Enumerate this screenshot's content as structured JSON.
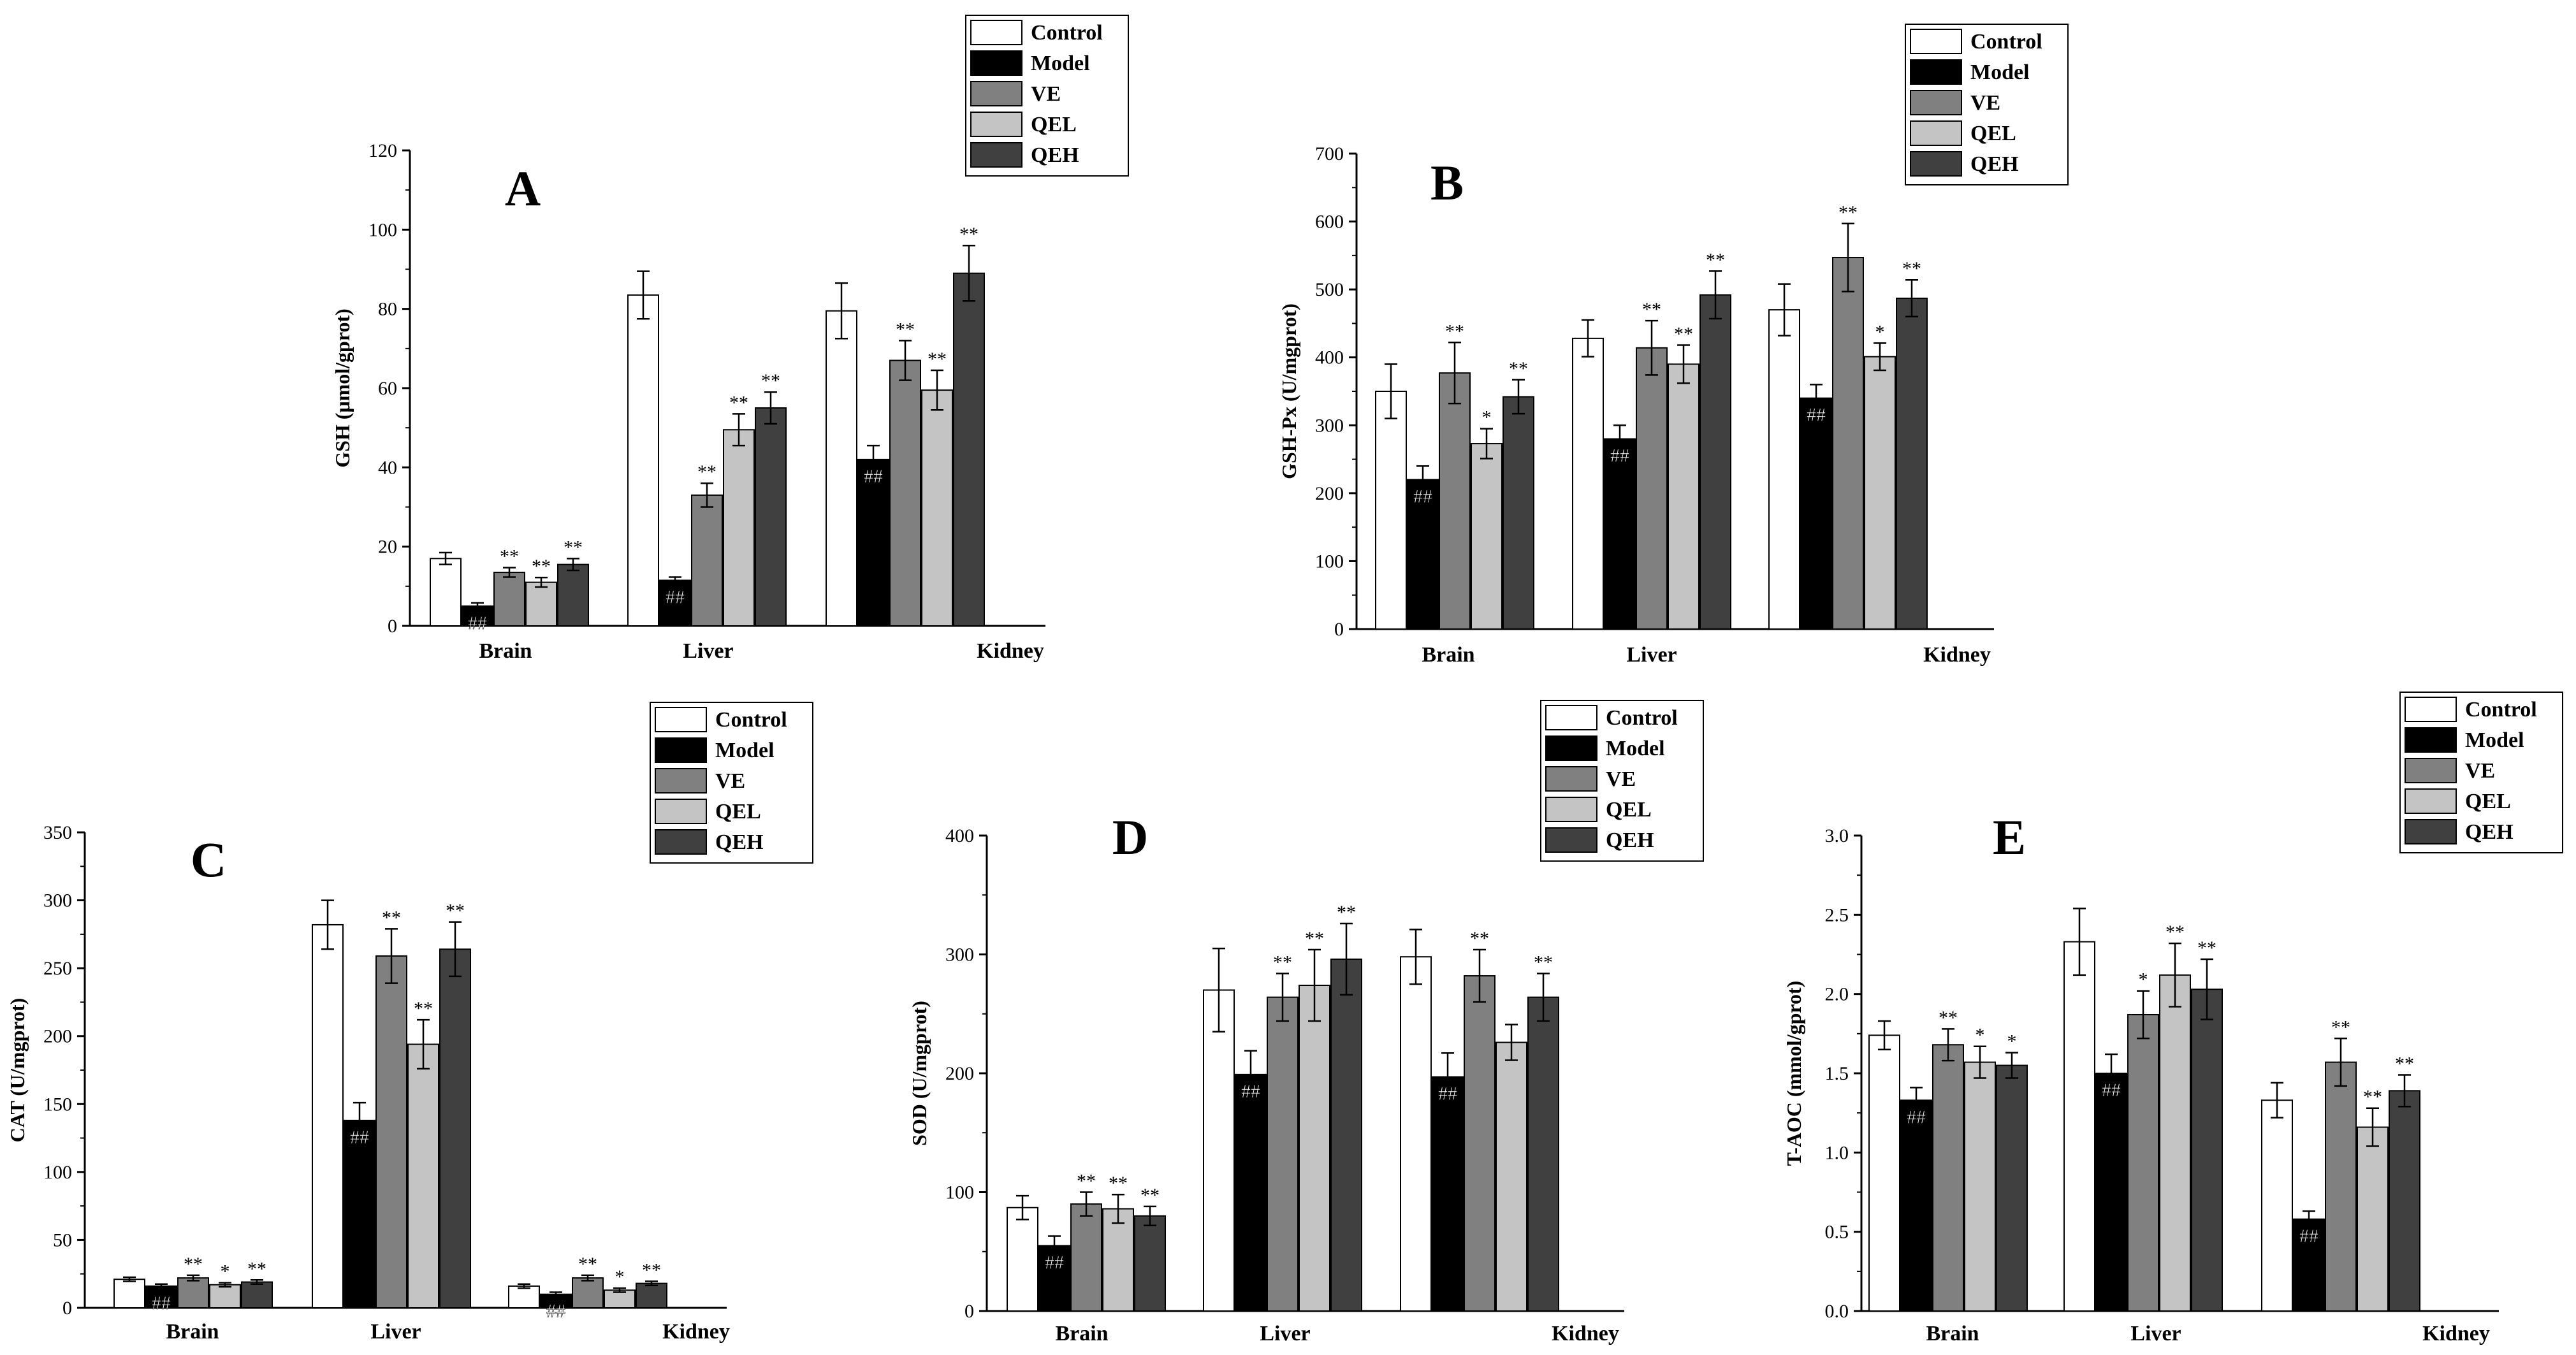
{
  "colors": {
    "Control": "#ffffff",
    "Model": "#000000",
    "VE": "#808080",
    "QEL": "#c4c4c4",
    "QEH": "#404040"
  },
  "chart_data": [
    {
      "id": "A",
      "type": "bar",
      "panel_letter": "A",
      "ylabel": "GSH (μmol/gprot)",
      "ylim": [
        0,
        120
      ],
      "yticks": [
        0,
        20,
        40,
        60,
        80,
        100,
        120
      ],
      "ytick_labels": [
        "0",
        "20",
        "40",
        "60",
        "80",
        "100",
        "120"
      ],
      "categories": [
        "Brain",
        "Liver",
        "Kidney"
      ],
      "series": [
        {
          "name": "Control",
          "values": [
            17,
            83.5,
            79.5
          ],
          "errors": [
            1.5,
            6,
            7
          ],
          "marks": [
            "",
            "",
            ""
          ]
        },
        {
          "name": "Model",
          "values": [
            5,
            11.5,
            42
          ],
          "errors": [
            0.8,
            0.8,
            3.5
          ],
          "marks": [
            "##",
            "##",
            "##"
          ]
        },
        {
          "name": "VE",
          "values": [
            13.5,
            33,
            67
          ],
          "errors": [
            1.2,
            3,
            5
          ],
          "marks": [
            "**",
            "**",
            "**"
          ]
        },
        {
          "name": "QEL",
          "values": [
            11,
            49.5,
            59.5
          ],
          "errors": [
            1.2,
            4,
            5
          ],
          "marks": [
            "**",
            "**",
            "**"
          ]
        },
        {
          "name": "QEH",
          "values": [
            15.5,
            55,
            89
          ],
          "errors": [
            1.5,
            4,
            7
          ],
          "marks": [
            "**",
            "**",
            "**"
          ]
        }
      ]
    },
    {
      "id": "B",
      "type": "bar",
      "panel_letter": "B",
      "ylabel": "GSH-Px (U/mgprot)",
      "ylim": [
        0,
        700
      ],
      "yticks": [
        0,
        100,
        200,
        300,
        400,
        500,
        600,
        700
      ],
      "ytick_labels": [
        "0",
        "100",
        "200",
        "300",
        "400",
        "500",
        "600",
        "700"
      ],
      "categories": [
        "Brain",
        "Liver",
        "Kidney"
      ],
      "series": [
        {
          "name": "Control",
          "values": [
            350,
            428,
            470
          ],
          "errors": [
            40,
            27,
            38
          ],
          "marks": [
            "",
            "",
            ""
          ]
        },
        {
          "name": "Model",
          "values": [
            220,
            280,
            340
          ],
          "errors": [
            20,
            20,
            20
          ],
          "marks": [
            "##",
            "##",
            "##"
          ]
        },
        {
          "name": "VE",
          "values": [
            377,
            414,
            547
          ],
          "errors": [
            45,
            40,
            50
          ],
          "marks": [
            "**",
            "**",
            "**"
          ]
        },
        {
          "name": "QEL",
          "values": [
            273,
            390,
            401
          ],
          "errors": [
            22,
            28,
            20
          ],
          "marks": [
            "*",
            "**",
            "*"
          ]
        },
        {
          "name": "QEH",
          "values": [
            342,
            492,
            487
          ],
          "errors": [
            25,
            35,
            27
          ],
          "marks": [
            "**",
            "**",
            "**"
          ]
        }
      ]
    },
    {
      "id": "C",
      "type": "bar",
      "panel_letter": "C",
      "ylabel": "CAT (U/mgprot)",
      "ylim": [
        0,
        350
      ],
      "yticks": [
        0,
        50,
        100,
        150,
        200,
        250,
        300,
        350
      ],
      "ytick_labels": [
        "0",
        "50",
        "100",
        "150",
        "200",
        "250",
        "300",
        "350"
      ],
      "categories": [
        "Brain",
        "Liver",
        "Kidney"
      ],
      "series": [
        {
          "name": "Control",
          "values": [
            21,
            282,
            16
          ],
          "errors": [
            1.5,
            18,
            1.5
          ],
          "marks": [
            "",
            "",
            ""
          ]
        },
        {
          "name": "Model",
          "values": [
            16,
            138,
            10
          ],
          "errors": [
            1.5,
            13,
            1.5
          ],
          "marks": [
            "##",
            "##",
            "##"
          ]
        },
        {
          "name": "VE",
          "values": [
            22,
            259,
            22
          ],
          "errors": [
            2,
            20,
            2
          ],
          "marks": [
            "**",
            "**",
            "**"
          ]
        },
        {
          "name": "QEL",
          "values": [
            17,
            194,
            13
          ],
          "errors": [
            1.5,
            18,
            1.5
          ],
          "marks": [
            "*",
            "**",
            "*"
          ]
        },
        {
          "name": "QEH",
          "values": [
            19,
            264,
            18
          ],
          "errors": [
            1.5,
            20,
            1.5
          ],
          "marks": [
            "**",
            "**",
            "**"
          ]
        }
      ]
    },
    {
      "id": "D",
      "type": "bar",
      "panel_letter": "D",
      "ylabel": "SOD (U/mgprot)",
      "ylim": [
        0,
        400
      ],
      "yticks": [
        0,
        100,
        200,
        300,
        400
      ],
      "ytick_labels": [
        "0",
        "100",
        "200",
        "300",
        "400"
      ],
      "categories": [
        "Brain",
        "Liver",
        "Kidney"
      ],
      "series": [
        {
          "name": "Control",
          "values": [
            87,
            270,
            298
          ],
          "errors": [
            10,
            35,
            23
          ],
          "marks": [
            "",
            "",
            ""
          ]
        },
        {
          "name": "Model",
          "values": [
            55,
            199,
            197
          ],
          "errors": [
            8,
            20,
            20
          ],
          "marks": [
            "##",
            "##",
            "##"
          ]
        },
        {
          "name": "VE",
          "values": [
            90,
            264,
            282
          ],
          "errors": [
            10,
            20,
            22
          ],
          "marks": [
            "**",
            "**",
            "**"
          ]
        },
        {
          "name": "QEL",
          "values": [
            86,
            274,
            226
          ],
          "errors": [
            12,
            30,
            15
          ],
          "marks": [
            "**",
            "**",
            ""
          ]
        },
        {
          "name": "QEH",
          "values": [
            80,
            296,
            264
          ],
          "errors": [
            8,
            30,
            20
          ],
          "marks": [
            "**",
            "**",
            "**"
          ]
        }
      ]
    },
    {
      "id": "E",
      "type": "bar",
      "panel_letter": "E",
      "ylabel": "T-AOC (mmol/gprot)",
      "ylim": [
        0,
        3
      ],
      "yticks": [
        0,
        0.5,
        1,
        1.5,
        2,
        2.5,
        3
      ],
      "ytick_labels": [
        "0.0",
        "0.5",
        "1.0",
        "1.5",
        "2.0",
        "2.5",
        "3.0"
      ],
      "categories": [
        "Brain",
        "Liver",
        "Kidney"
      ],
      "series": [
        {
          "name": "Control",
          "values": [
            1.74,
            2.33,
            1.33
          ],
          "errors": [
            0.09,
            0.21,
            0.11
          ],
          "marks": [
            "",
            "",
            ""
          ]
        },
        {
          "name": "Model",
          "values": [
            1.33,
            1.5,
            0.58
          ],
          "errors": [
            0.08,
            0.12,
            0.05
          ],
          "marks": [
            "##",
            "##",
            "##"
          ]
        },
        {
          "name": "VE",
          "values": [
            1.68,
            1.87,
            1.57
          ],
          "errors": [
            0.1,
            0.15,
            0.15
          ],
          "marks": [
            "**",
            "*",
            "**"
          ]
        },
        {
          "name": "QEL",
          "values": [
            1.57,
            2.12,
            1.16
          ],
          "errors": [
            0.1,
            0.2,
            0.12
          ],
          "marks": [
            "*",
            "**",
            "**"
          ]
        },
        {
          "name": "QEH",
          "values": [
            1.55,
            2.03,
            1.39
          ],
          "errors": [
            0.08,
            0.19,
            0.1
          ],
          "marks": [
            "*",
            "**",
            "**"
          ]
        }
      ]
    }
  ]
}
